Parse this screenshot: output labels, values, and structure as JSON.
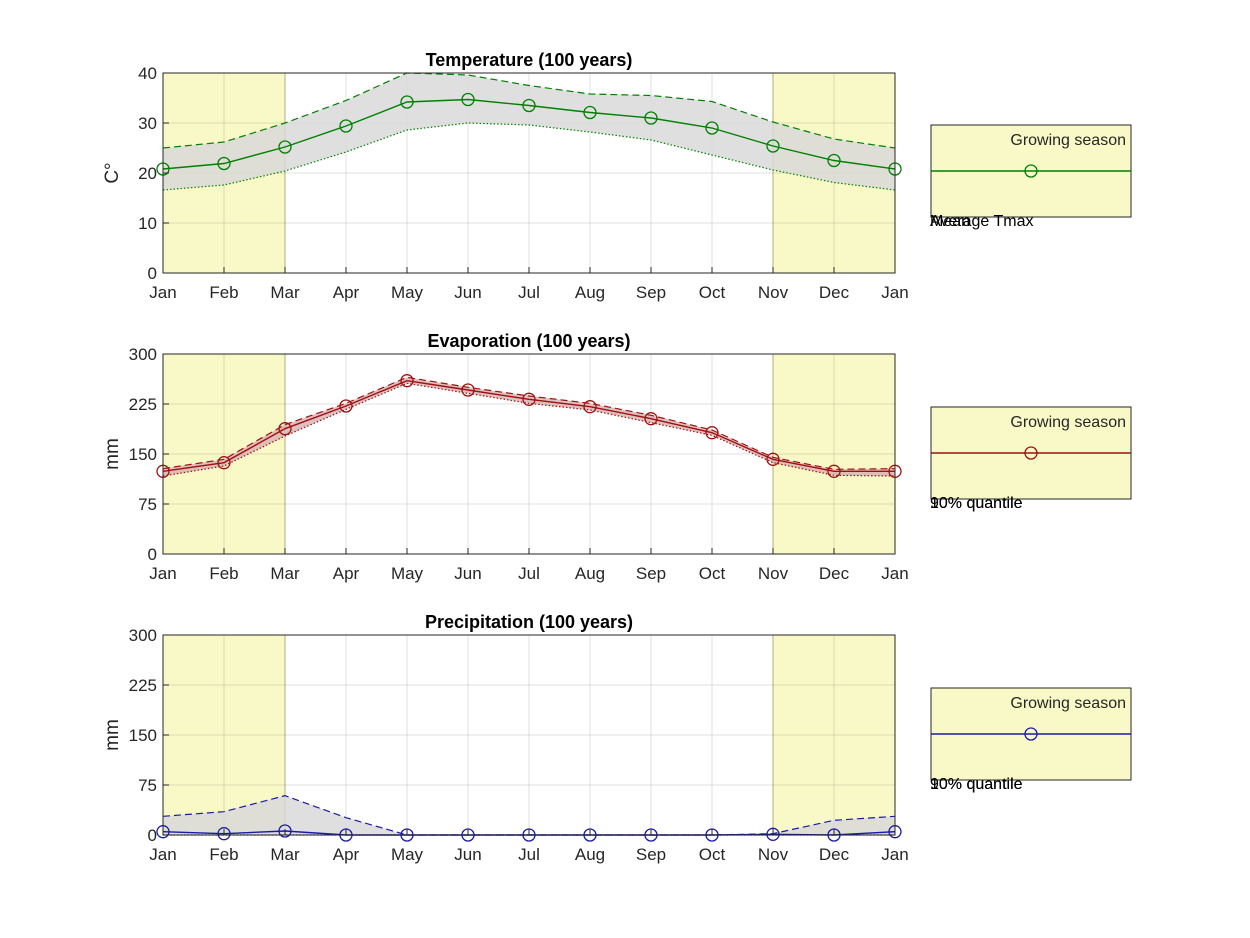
{
  "chart_data": [
    {
      "type": "line",
      "title": "Temperature (100 years)",
      "ylabel": "C°",
      "xlabel": "",
      "categories": [
        "Jan",
        "Feb",
        "Mar",
        "Apr",
        "May",
        "Jun",
        "Jul",
        "Aug",
        "Sep",
        "Oct",
        "Nov",
        "Dec",
        "Jan"
      ],
      "ylim": [
        0,
        40
      ],
      "yticks": [
        0,
        10,
        20,
        30,
        40
      ],
      "grid": true,
      "color": "#008000",
      "shade_color": "#d9d9d9",
      "growing_season_color": "#f9f9c8",
      "growing_season": [
        [
          0,
          2
        ],
        [
          10,
          12
        ]
      ],
      "series": [
        {
          "style": "solid-markers",
          "values": [
            20.8,
            21.9,
            25.2,
            29.4,
            34.2,
            34.7,
            33.5,
            32.1,
            31.0,
            29.0,
            25.4,
            22.5,
            20.8
          ]
        },
        {
          "style": "dashed",
          "values": [
            25.0,
            26.2,
            30.0,
            34.5,
            40.0,
            39.6,
            37.5,
            35.8,
            35.5,
            34.3,
            30.2,
            26.8,
            25.0
          ]
        },
        {
          "style": "dotted",
          "values": [
            16.6,
            17.6,
            20.4,
            24.2,
            28.6,
            30.0,
            29.6,
            28.2,
            26.6,
            23.6,
            20.6,
            18.1,
            16.6
          ]
        }
      ],
      "legend": {
        "position": "right",
        "entry": "Growing season",
        "overlap_text": [
          "Average Tmax",
          "Mean"
        ]
      }
    },
    {
      "type": "line",
      "title": "Evaporation (100 years)",
      "ylabel": "mm",
      "xlabel": "",
      "categories": [
        "Jan",
        "Feb",
        "Mar",
        "Apr",
        "May",
        "Jun",
        "Jul",
        "Aug",
        "Sep",
        "Oct",
        "Nov",
        "Dec",
        "Jan"
      ],
      "ylim": [
        0,
        300
      ],
      "yticks": [
        0,
        75,
        150,
        225,
        300
      ],
      "grid": true,
      "color": "#a01010",
      "shade_color": "#d8b5b5",
      "growing_season_color": "#f9f9c8",
      "growing_season": [
        [
          0,
          2
        ],
        [
          10,
          12
        ]
      ],
      "series": [
        {
          "style": "solid-markers",
          "values": [
            124,
            137,
            188,
            222,
            260,
            246,
            232,
            221,
            203,
            182,
            142,
            124,
            124
          ]
        },
        {
          "style": "dashed",
          "values": [
            128,
            142,
            194,
            226,
            265,
            250,
            237,
            226,
            208,
            186,
            145,
            127,
            128
          ]
        },
        {
          "style": "dotted",
          "values": [
            117,
            132,
            177,
            217,
            256,
            241,
            226,
            216,
            197,
            178,
            137,
            118,
            117
          ]
        }
      ],
      "legend": {
        "position": "right",
        "entry": "Growing season",
        "overlap_text": [
          "90% quantile",
          "10% quantile"
        ]
      }
    },
    {
      "type": "line",
      "title": "Precipitation (100 years)",
      "ylabel": "mm",
      "xlabel": "",
      "categories": [
        "Jan",
        "Feb",
        "Mar",
        "Apr",
        "May",
        "Jun",
        "Jul",
        "Aug",
        "Sep",
        "Oct",
        "Nov",
        "Dec",
        "Jan"
      ],
      "ylim": [
        0,
        300
      ],
      "yticks": [
        0,
        75,
        150,
        225,
        300
      ],
      "grid": true,
      "color": "#1a1aaa",
      "shade_color": "#d9d9d9",
      "growing_season_color": "#f9f9c8",
      "growing_season": [
        [
          0,
          2
        ],
        [
          10,
          12
        ]
      ],
      "series": [
        {
          "style": "solid-markers",
          "values": [
            5,
            2,
            6,
            0,
            0,
            0,
            0,
            0,
            0,
            0,
            1,
            0,
            5
          ]
        },
        {
          "style": "dashed",
          "values": [
            28,
            35,
            59,
            26,
            0,
            0,
            0,
            0,
            0,
            0,
            2,
            22,
            28
          ]
        },
        {
          "style": "dotted",
          "values": [
            0,
            0,
            0,
            0,
            0,
            0,
            0,
            0,
            0,
            0,
            0,
            0,
            0
          ]
        }
      ],
      "legend": {
        "position": "right",
        "entry": "Growing season",
        "overlap_text": [
          "90% quantile",
          "10% quantile"
        ]
      }
    }
  ]
}
